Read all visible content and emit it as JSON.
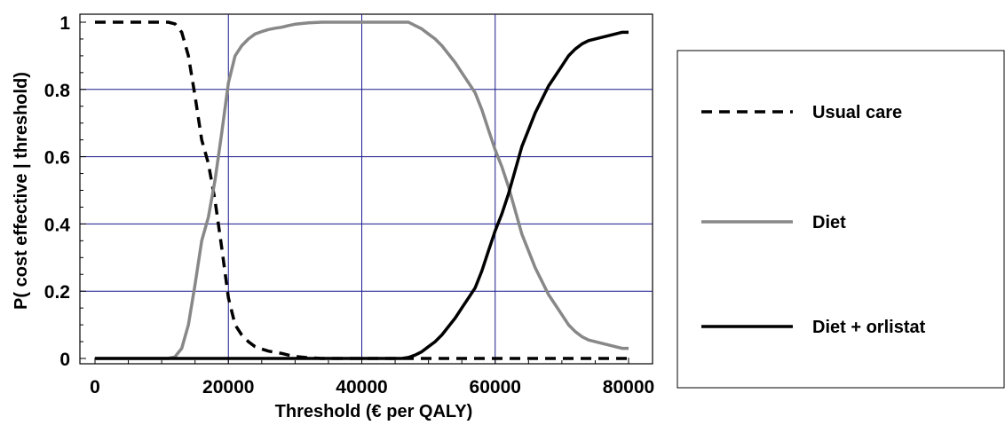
{
  "chart_data": {
    "type": "line",
    "xlabel": "Threshold (€ per QALY)",
    "ylabel": "P( cost effective | threshold)",
    "xlim": [
      0,
      80000
    ],
    "ylim": [
      0,
      1
    ],
    "xticks": [
      0,
      20000,
      40000,
      60000,
      80000
    ],
    "yticks": [
      0,
      0.2,
      0.4,
      0.6,
      0.8,
      1
    ],
    "grid": true,
    "legend_position": "right",
    "x": [
      0,
      2000,
      4000,
      6000,
      8000,
      10000,
      11000,
      12000,
      13000,
      14000,
      15000,
      16000,
      17000,
      18000,
      19000,
      20000,
      21000,
      22000,
      23000,
      24000,
      25000,
      26000,
      27000,
      28000,
      29000,
      30000,
      31000,
      32000,
      34000,
      36000,
      38000,
      40000,
      42000,
      44000,
      46000,
      47000,
      48000,
      49000,
      50000,
      51000,
      52000,
      53000,
      54000,
      55000,
      56000,
      57000,
      58000,
      59000,
      60000,
      61000,
      62000,
      63000,
      64000,
      65000,
      66000,
      67000,
      68000,
      69000,
      70000,
      71000,
      72000,
      73000,
      74000,
      75000,
      76000,
      77000,
      78000,
      79000,
      80000
    ],
    "series": [
      {
        "name": "Usual care",
        "style": "dashed",
        "color": "#000000",
        "values": [
          1,
          1,
          1,
          1,
          1,
          1,
          1,
          0.995,
          0.97,
          0.9,
          0.78,
          0.65,
          0.58,
          0.47,
          0.33,
          0.18,
          0.1,
          0.07,
          0.05,
          0.035,
          0.028,
          0.022,
          0.018,
          0.015,
          0.01,
          0.006,
          0.004,
          0.002,
          0,
          0,
          0,
          0,
          0,
          0,
          0,
          0,
          0,
          0,
          0,
          0,
          0,
          0,
          0,
          0,
          0,
          0,
          0,
          0,
          0,
          0,
          0,
          0,
          0,
          0,
          0,
          0,
          0,
          0,
          0,
          0,
          0,
          0,
          0,
          0,
          0,
          0,
          0,
          0,
          0
        ]
      },
      {
        "name": "Diet",
        "style": "solid",
        "color": "#888888",
        "values": [
          0,
          0,
          0,
          0,
          0,
          0,
          0,
          0.005,
          0.03,
          0.1,
          0.22,
          0.35,
          0.42,
          0.53,
          0.67,
          0.82,
          0.9,
          0.93,
          0.95,
          0.965,
          0.972,
          0.978,
          0.982,
          0.985,
          0.99,
          0.994,
          0.996,
          0.998,
          1,
          1,
          1,
          1,
          1,
          1,
          1,
          1,
          0.99,
          0.98,
          0.965,
          0.95,
          0.93,
          0.905,
          0.88,
          0.85,
          0.82,
          0.79,
          0.74,
          0.68,
          0.62,
          0.57,
          0.51,
          0.44,
          0.37,
          0.32,
          0.27,
          0.23,
          0.19,
          0.16,
          0.13,
          0.1,
          0.08,
          0.065,
          0.055,
          0.05,
          0.045,
          0.04,
          0.035,
          0.03,
          0.03
        ]
      },
      {
        "name": "Diet + orlistat",
        "style": "solid",
        "color": "#000000",
        "values": [
          0,
          0,
          0,
          0,
          0,
          0,
          0,
          0,
          0,
          0,
          0,
          0,
          0,
          0,
          0,
          0,
          0,
          0,
          0,
          0,
          0,
          0,
          0,
          0,
          0,
          0,
          0,
          0,
          0,
          0,
          0,
          0,
          0,
          0,
          0,
          0.003,
          0.01,
          0.02,
          0.035,
          0.05,
          0.07,
          0.095,
          0.12,
          0.15,
          0.18,
          0.21,
          0.26,
          0.32,
          0.38,
          0.43,
          0.49,
          0.56,
          0.63,
          0.68,
          0.73,
          0.77,
          0.81,
          0.84,
          0.87,
          0.9,
          0.92,
          0.935,
          0.945,
          0.95,
          0.955,
          0.96,
          0.965,
          0.97,
          0.97
        ]
      }
    ]
  }
}
